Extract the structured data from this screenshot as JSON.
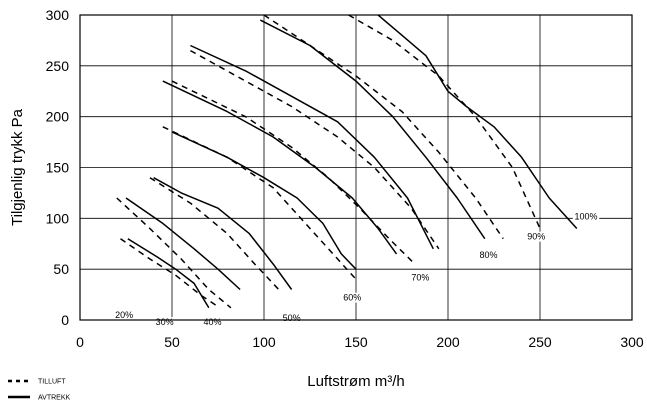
{
  "chart_data": {
    "type": "line",
    "xlabel": "Luftstrøm m³/h",
    "ylabel": "Tilgjenlig trykk Pa",
    "xlim": [
      0,
      300
    ],
    "ylim": [
      0,
      300
    ],
    "x_ticks": [
      0,
      50,
      100,
      150,
      200,
      250,
      300
    ],
    "y_ticks": [
      0,
      50,
      100,
      150,
      200,
      250,
      300
    ],
    "grid": true,
    "legend_position": "bottom-left",
    "legend": [
      {
        "label": "TILLUFT",
        "style": "dashed"
      },
      {
        "label": "AVTREKK",
        "style": "solid"
      }
    ],
    "series": [
      {
        "speed": "20%",
        "type": "TILLUFT",
        "points": [
          [
            20,
            120
          ],
          [
            38,
            90
          ],
          [
            55,
            60
          ],
          [
            70,
            30
          ],
          [
            82,
            12
          ]
        ]
      },
      {
        "speed": "20%",
        "type": "AVTREKK",
        "points": [
          [
            26,
            80
          ],
          [
            42,
            62
          ],
          [
            52,
            50
          ],
          [
            62,
            36
          ],
          [
            70,
            12
          ]
        ]
      },
      {
        "speed": "30%",
        "type": "TILLUFT",
        "points": [
          [
            22,
            80
          ],
          [
            38,
            60
          ],
          [
            52,
            44
          ],
          [
            66,
            24
          ],
          [
            76,
            12
          ]
        ]
      },
      {
        "speed": "30%",
        "type": "AVTREKK",
        "points": [
          [
            25,
            120
          ],
          [
            45,
            95
          ],
          [
            62,
            70
          ],
          [
            75,
            50
          ],
          [
            87,
            30
          ]
        ]
      },
      {
        "speed": "40%",
        "type": "TILLUFT",
        "points": [
          [
            38,
            140
          ],
          [
            60,
            115
          ],
          [
            80,
            85
          ],
          [
            95,
            55
          ],
          [
            108,
            30
          ]
        ]
      },
      {
        "speed": "40%",
        "type": "AVTREKK",
        "points": [
          [
            40,
            140
          ],
          [
            55,
            125
          ],
          [
            75,
            110
          ],
          [
            92,
            85
          ],
          [
            105,
            55
          ],
          [
            115,
            30
          ]
        ]
      },
      {
        "speed": "50%",
        "type": "TILLUFT",
        "points": [
          [
            45,
            190
          ],
          [
            80,
            160
          ],
          [
            105,
            130
          ],
          [
            120,
            100
          ],
          [
            135,
            70
          ],
          [
            150,
            40
          ]
        ]
      },
      {
        "speed": "50%",
        "type": "AVTREKK",
        "points": [
          [
            50,
            185
          ],
          [
            80,
            160
          ],
          [
            100,
            140
          ],
          [
            118,
            120
          ],
          [
            132,
            95
          ],
          [
            142,
            65
          ],
          [
            150,
            50
          ]
        ]
      },
      {
        "speed": "60%",
        "type": "TILLUFT",
        "points": [
          [
            50,
            235
          ],
          [
            90,
            200
          ],
          [
            115,
            170
          ],
          [
            135,
            140
          ],
          [
            152,
            110
          ],
          [
            168,
            80
          ],
          [
            182,
            55
          ]
        ]
      },
      {
        "speed": "60%",
        "type": "AVTREKK",
        "points": [
          [
            45,
            235
          ],
          [
            80,
            205
          ],
          [
            105,
            180
          ],
          [
            128,
            150
          ],
          [
            148,
            120
          ],
          [
            162,
            90
          ],
          [
            172,
            65
          ]
        ]
      },
      {
        "speed": "70%",
        "type": "TILLUFT",
        "points": [
          [
            60,
            265
          ],
          [
            90,
            235
          ],
          [
            115,
            210
          ],
          [
            140,
            180
          ],
          [
            160,
            150
          ],
          [
            180,
            110
          ],
          [
            195,
            70
          ]
        ]
      },
      {
        "speed": "70%",
        "type": "AVTREKK",
        "points": [
          [
            60,
            270
          ],
          [
            90,
            245
          ],
          [
            115,
            220
          ],
          [
            140,
            195
          ],
          [
            160,
            160
          ],
          [
            178,
            120
          ],
          [
            192,
            70
          ]
        ]
      },
      {
        "speed": "80%",
        "type": "TILLUFT",
        "points": [
          [
            100,
            300
          ],
          [
            125,
            270
          ],
          [
            150,
            240
          ],
          [
            175,
            205
          ],
          [
            195,
            165
          ],
          [
            215,
            120
          ],
          [
            230,
            80
          ]
        ]
      },
      {
        "speed": "80%",
        "type": "AVTREKK",
        "points": [
          [
            98,
            295
          ],
          [
            125,
            270
          ],
          [
            150,
            235
          ],
          [
            170,
            200
          ],
          [
            188,
            160
          ],
          [
            205,
            120
          ],
          [
            220,
            80
          ]
        ]
      },
      {
        "speed": "90%",
        "type": "TILLUFT",
        "points": [
          [
            146,
            300
          ],
          [
            170,
            275
          ],
          [
            195,
            240
          ],
          [
            215,
            200
          ],
          [
            235,
            150
          ],
          [
            250,
            90
          ]
        ]
      },
      {
        "speed": "100%",
        "type": "AVTREKK",
        "points": [
          [
            162,
            300
          ],
          [
            175,
            280
          ],
          [
            188,
            260
          ],
          [
            200,
            225
          ],
          [
            210,
            210
          ],
          [
            225,
            190
          ],
          [
            240,
            160
          ],
          [
            255,
            120
          ],
          [
            270,
            90
          ]
        ]
      }
    ],
    "curve_labels": [
      {
        "text": "20%",
        "x": 24,
        "y": 3
      },
      {
        "text": "30%",
        "x": 46,
        "y": -4
      },
      {
        "text": "40%",
        "x": 72,
        "y": -4
      },
      {
        "text": "50%",
        "x": 115,
        "y": 0
      },
      {
        "text": "60%",
        "x": 148,
        "y": 20
      },
      {
        "text": "70%",
        "x": 185,
        "y": 40
      },
      {
        "text": "80%",
        "x": 222,
        "y": 62
      },
      {
        "text": "90%",
        "x": 248,
        "y": 80
      },
      {
        "text": "100%",
        "x": 275,
        "y": 100
      }
    ]
  }
}
